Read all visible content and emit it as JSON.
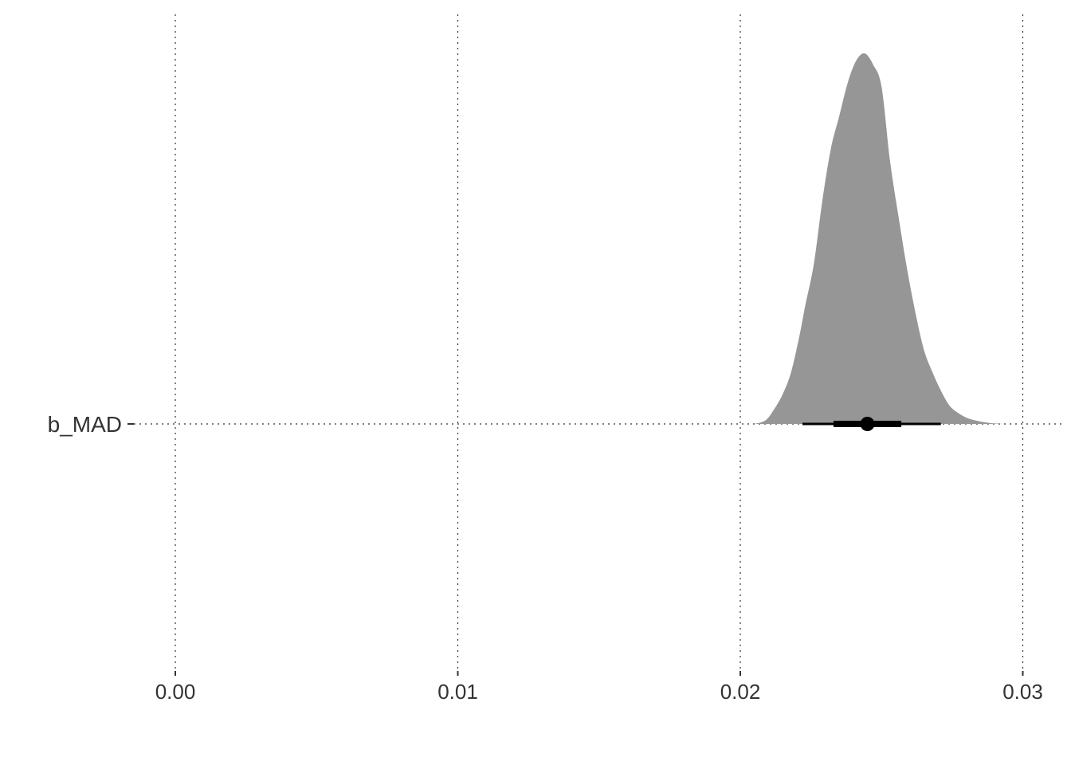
{
  "chart_data": {
    "type": "area",
    "title": "",
    "xlabel": "",
    "ylabel": "",
    "x_ticks": [
      0.0,
      0.01,
      0.02,
      0.03
    ],
    "x_tick_labels": [
      "0.00",
      "0.01",
      "0.02",
      "0.03"
    ],
    "xlim": [
      -0.0054,
      0.0315
    ],
    "categories": [
      "b_MAD"
    ],
    "grid": true,
    "density_color": "#969696",
    "interval_color": "#000000",
    "series": [
      {
        "category": "b_MAD",
        "density": {
          "x": [
            0.0205,
            0.0209,
            0.0212,
            0.0215,
            0.0218,
            0.0221,
            0.0223,
            0.0226,
            0.0229,
            0.0232,
            0.0235,
            0.0238,
            0.0241,
            0.0244,
            0.0247,
            0.025,
            0.0253,
            0.0256,
            0.0259,
            0.0262,
            0.0265,
            0.0268,
            0.0271,
            0.0274,
            0.0277,
            0.028,
            0.0283,
            0.0286,
            0.0289,
            0.0293
          ],
          "y": [
            0.0,
            0.01,
            0.04,
            0.08,
            0.14,
            0.24,
            0.32,
            0.43,
            0.6,
            0.74,
            0.83,
            0.92,
            0.98,
            1.0,
            0.97,
            0.91,
            0.71,
            0.56,
            0.42,
            0.3,
            0.2,
            0.14,
            0.09,
            0.05,
            0.03,
            0.017,
            0.01,
            0.005,
            0.002,
            0.0
          ]
        },
        "point_estimate": 0.0245,
        "inner_interval": [
          0.0233,
          0.0257
        ],
        "outer_interval": [
          0.0222,
          0.0271
        ]
      }
    ]
  }
}
